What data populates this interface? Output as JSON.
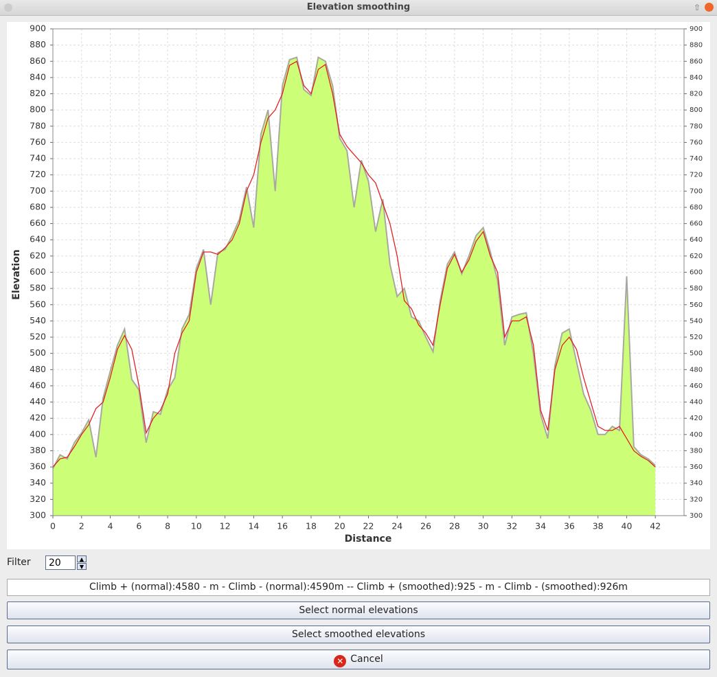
{
  "window": {
    "title": "Elevation smoothing"
  },
  "chart_data": {
    "type": "area-line",
    "xlabel": "Distance",
    "ylabel": "Elevation",
    "x": [
      0,
      0.5,
      1,
      1.5,
      2,
      2.5,
      3,
      3.5,
      4,
      4.5,
      5,
      5.5,
      6,
      6.5,
      7,
      7.5,
      8,
      8.5,
      9,
      9.5,
      10,
      10.5,
      11,
      11.5,
      12,
      12.5,
      13,
      13.5,
      14,
      14.5,
      15,
      15.5,
      16,
      16.5,
      17,
      17.5,
      18,
      18.5,
      19,
      19.5,
      20,
      20.5,
      21,
      21.5,
      22,
      22.5,
      23,
      23.5,
      24,
      24.5,
      25,
      25.5,
      26,
      26.5,
      27,
      27.5,
      28,
      28.5,
      29,
      29.5,
      30,
      30.5,
      31,
      31.5,
      32,
      32.5,
      33,
      33.5,
      34,
      34.5,
      35,
      35.5,
      36,
      36.5,
      37,
      37.5,
      38,
      38.5,
      39,
      39.5,
      40,
      40.5,
      41,
      41.5,
      42
    ],
    "series": [
      {
        "color": "#a8a8a0",
        "fill": "#ccff77",
        "values": [
          358,
          375,
          370,
          390,
          402,
          418,
          372,
          445,
          478,
          510,
          530,
          468,
          455,
          390,
          428,
          425,
          455,
          470,
          530,
          548,
          605,
          628,
          560,
          624,
          628,
          645,
          665,
          705,
          655,
          770,
          800,
          700,
          830,
          862,
          865,
          825,
          818,
          865,
          860,
          830,
          765,
          750,
          680,
          738,
          712,
          650,
          690,
          610,
          570,
          580,
          545,
          540,
          520,
          502,
          565,
          610,
          625,
          598,
          620,
          645,
          655,
          625,
          590,
          510,
          545,
          548,
          550,
          500,
          425,
          395,
          485,
          525,
          530,
          490,
          450,
          430,
          400,
          400,
          410,
          405,
          595,
          385,
          375,
          370,
          362
        ]
      },
      {
        "color": "#e02020",
        "values": [
          360,
          370,
          372,
          385,
          400,
          412,
          432,
          440,
          470,
          505,
          522,
          505,
          460,
          402,
          420,
          430,
          450,
          500,
          525,
          540,
          600,
          625,
          625,
          622,
          630,
          640,
          660,
          700,
          720,
          760,
          790,
          800,
          820,
          855,
          860,
          830,
          820,
          850,
          856,
          820,
          770,
          755,
          745,
          735,
          720,
          710,
          685,
          660,
          620,
          565,
          555,
          535,
          525,
          510,
          560,
          605,
          622,
          600,
          615,
          638,
          650,
          620,
          600,
          520,
          540,
          540,
          545,
          510,
          430,
          405,
          480,
          510,
          520,
          505,
          470,
          440,
          410,
          405,
          405,
          410,
          395,
          380,
          373,
          368,
          360
        ]
      }
    ],
    "xlim": [
      0,
      44
    ],
    "xticks": [
      0,
      2,
      4,
      6,
      8,
      10,
      12,
      14,
      16,
      18,
      20,
      22,
      24,
      26,
      28,
      30,
      32,
      34,
      36,
      38,
      40,
      42
    ],
    "ylim": [
      300,
      900
    ],
    "yticks": [
      300,
      320,
      340,
      360,
      380,
      400,
      420,
      440,
      460,
      480,
      500,
      520,
      540,
      560,
      580,
      600,
      620,
      640,
      660,
      680,
      700,
      720,
      740,
      760,
      780,
      800,
      820,
      840,
      860,
      880,
      900
    ],
    "y2lim": [
      300,
      900
    ],
    "y2ticks": [
      300,
      320,
      340,
      360,
      380,
      400,
      420,
      440,
      460,
      480,
      500,
      520,
      540,
      560,
      580,
      600,
      620,
      640,
      660,
      680,
      700,
      720,
      740,
      760,
      780,
      800,
      820,
      840,
      860,
      880,
      900
    ],
    "grid": true
  },
  "filter": {
    "label": "Filter",
    "value": 20
  },
  "climb_text": "Climb + (normal):4580 - m - Climb - (normal):4590m -- Climb + (smoothed):925 - m - Climb - (smoothed):926m",
  "buttons": [
    "Select normal elevations",
    "Select smoothed elevations",
    "Cancel"
  ]
}
